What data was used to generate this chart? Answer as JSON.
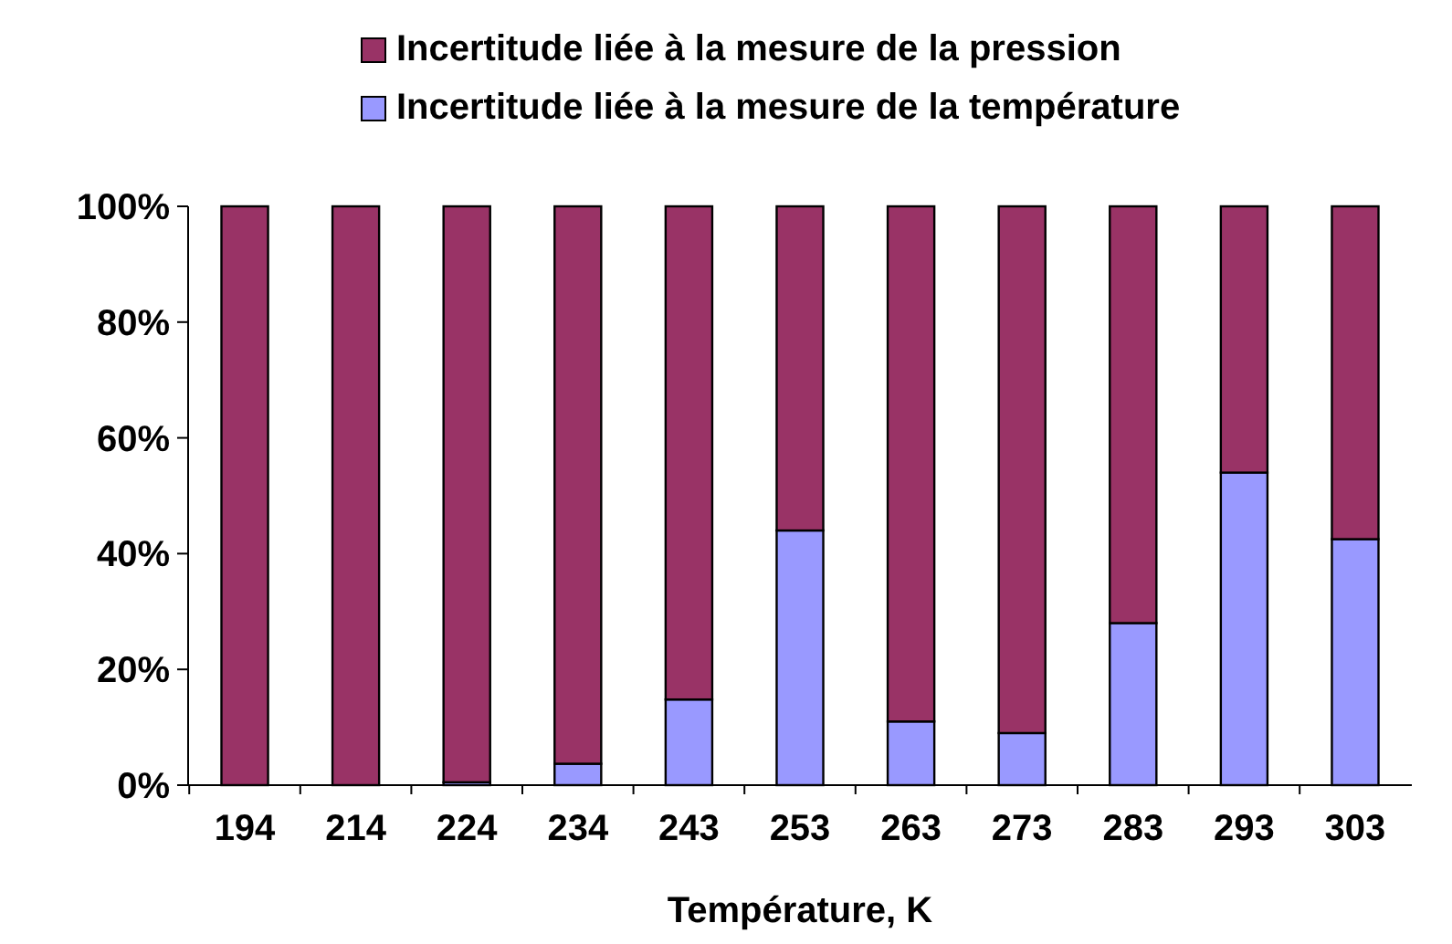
{
  "chart_data": {
    "type": "bar",
    "stacked": true,
    "xlabel": "Température, K",
    "categories": [
      "194",
      "214",
      "224",
      "234",
      "243",
      "253",
      "263",
      "273",
      "283",
      "293",
      "303"
    ],
    "series": [
      {
        "name": "Incertitude liée à la mesure de la température",
        "color": "#9999ff",
        "values": [
          0,
          0,
          0.5,
          3.7,
          14.8,
          44,
          11,
          9,
          28,
          54,
          42.5
        ]
      },
      {
        "name": "Incertitude liée à la mesure de la pression",
        "color": "#993366",
        "values": [
          100,
          100,
          99.5,
          96.3,
          85.2,
          56,
          89,
          91,
          72,
          46,
          57.5
        ]
      }
    ],
    "ylim": [
      0,
      100
    ],
    "yticks": [
      {
        "value": 0,
        "label": "0%"
      },
      {
        "value": 20,
        "label": "20%"
      },
      {
        "value": 40,
        "label": "40%"
      },
      {
        "value": 60,
        "label": "60%"
      },
      {
        "value": 80,
        "label": "80%"
      },
      {
        "value": 100,
        "label": "100%"
      }
    ],
    "grid": false,
    "legend": "top"
  }
}
